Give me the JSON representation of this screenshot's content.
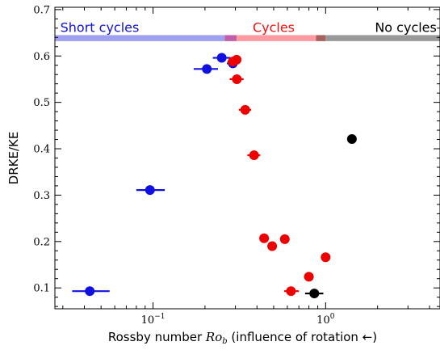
{
  "chart_data": {
    "type": "scatter",
    "xlabel": "Rossby number Ro_b (influence of rotation ←)",
    "xlabel_parts": {
      "prefix": "Rossby number ",
      "symbol": "Ro",
      "subscript": "b",
      "suffix": " (influence of rotation ←)"
    },
    "ylabel": "DRKE/KE",
    "xscale": "log",
    "xlim": [
      0.027,
      4.6
    ],
    "ylim": [
      0.055,
      0.705
    ],
    "x_ticks": [
      {
        "value": 0.1,
        "base": "10",
        "exp": "−1"
      },
      {
        "value": 1,
        "base": "10",
        "exp": "0"
      }
    ],
    "y_ticks": [
      {
        "value": 0.1,
        "label": "0.1"
      },
      {
        "value": 0.2,
        "label": "0.2"
      },
      {
        "value": 0.3,
        "label": "0.3"
      },
      {
        "value": 0.4,
        "label": "0.4"
      },
      {
        "value": 0.5,
        "label": "0.5"
      },
      {
        "value": 0.6,
        "label": "0.6"
      },
      {
        "value": 0.7,
        "label": "0.7"
      }
    ],
    "regime_bands": [
      {
        "name": "Short cycles",
        "x_from": 0.027,
        "x_to": 0.26,
        "color": "#a0a0f0",
        "label_color": "#1010d0",
        "label_anchor": "start",
        "label_at": 0.029
      },
      {
        "name": "overlap",
        "x_from": 0.26,
        "x_to": 0.305,
        "color": "#c060a8"
      },
      {
        "name": "Cycles",
        "x_from": 0.305,
        "x_to": 0.88,
        "color": "#ff9aa0",
        "label_color": "#ee1010",
        "label_anchor": "middle",
        "label_at": 0.5
      },
      {
        "name": "overlap",
        "x_from": 0.88,
        "x_to": 1.0,
        "color": "#a86060"
      },
      {
        "name": "No cycles",
        "x_from": 1.0,
        "x_to": 4.6,
        "color": "#999999",
        "label_color": "#000000",
        "label_anchor": "end",
        "label_at": 4.4
      }
    ],
    "band_y": [
      0.632,
      0.645
    ],
    "series": [
      {
        "color": "#1010e0",
        "points": [
          {
            "x": 0.043,
            "y": 0.093,
            "xerr": [
              0.034,
              0.056
            ]
          },
          {
            "x": 0.096,
            "y": 0.311,
            "xerr": [
              0.08,
              0.117
            ]
          },
          {
            "x": 0.205,
            "y": 0.572,
            "xerr": [
              0.172,
              0.238
            ]
          },
          {
            "x": 0.25,
            "y": 0.596,
            "xerr": [
              0.222,
              0.28
            ]
          },
          {
            "x": 0.29,
            "y": 0.584,
            "xerr": [
              0.268,
              0.31
            ]
          }
        ]
      },
      {
        "color": "#ee0000",
        "points": [
          {
            "x": 0.29,
            "y": 0.588,
            "xerr": [
              0.27,
              0.32
            ]
          },
          {
            "x": 0.305,
            "y": 0.592,
            "xerr": [
              0.285,
              0.325
            ]
          },
          {
            "x": 0.306,
            "y": 0.55,
            "xerr": [
              0.278,
              0.335
            ]
          },
          {
            "x": 0.342,
            "y": 0.484,
            "xerr": [
              0.314,
              0.37
            ]
          },
          {
            "x": 0.385,
            "y": 0.386,
            "xerr": [
              0.352,
              0.418
            ]
          },
          {
            "x": 0.44,
            "y": 0.207,
            "xerr": [
              0.415,
              0.47
            ]
          },
          {
            "x": 0.49,
            "y": 0.19,
            "xerr": [
              0.462,
              0.52
            ]
          },
          {
            "x": 0.58,
            "y": 0.205,
            "xerr": [
              0.55,
              0.61
            ]
          },
          {
            "x": 0.63,
            "y": 0.093,
            "xerr": [
              0.575,
              0.7
            ]
          },
          {
            "x": 0.8,
            "y": 0.124,
            "xerr": [
              0.75,
              0.85
            ]
          },
          {
            "x": 1.0,
            "y": 0.166,
            "xerr": [
              0.98,
              1.02
            ]
          }
        ]
      },
      {
        "color": "#000000",
        "points": [
          {
            "x": 0.86,
            "y": 0.088,
            "xerr": [
              0.76,
              0.97
            ]
          },
          {
            "x": 1.42,
            "y": 0.421,
            "xerr": [
              1.35,
              1.5
            ]
          }
        ]
      }
    ]
  }
}
